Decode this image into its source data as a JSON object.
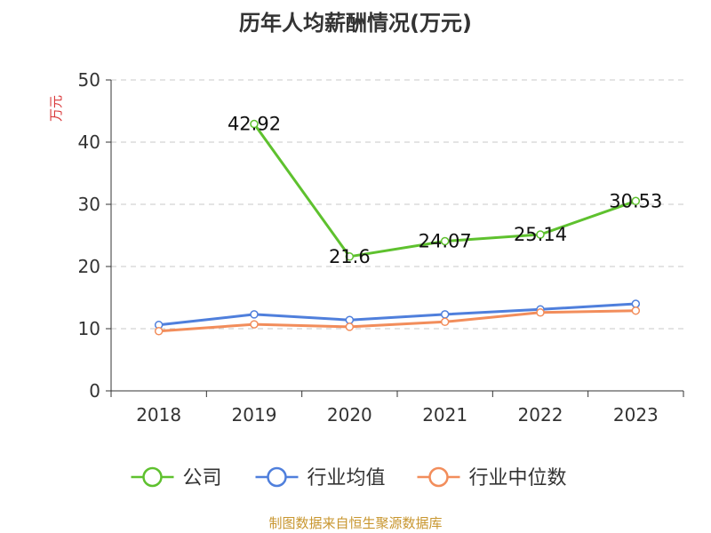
{
  "chart_data": {
    "type": "line",
    "title": "历年人均薪酬情况(万元)",
    "ylabel": "万元",
    "xlabel": "",
    "categories": [
      "2018",
      "2019",
      "2020",
      "2021",
      "2022",
      "2023"
    ],
    "ylim": [
      0,
      50
    ],
    "yticks": [
      0,
      10,
      20,
      30,
      40,
      50
    ],
    "grid": true,
    "legend_position": "bottom",
    "series": [
      {
        "name": "公司",
        "color": "#5ec12e",
        "values": [
          null,
          42.92,
          21.6,
          24.07,
          25.14,
          30.53
        ],
        "labels": [
          "",
          "42.92",
          "21.6",
          "24.07",
          "25.14",
          "30.53"
        ]
      },
      {
        "name": "行业均值",
        "color": "#4f7fdc",
        "values": [
          10.6,
          12.3,
          11.4,
          12.3,
          13.1,
          14.0
        ]
      },
      {
        "name": "行业中位数",
        "color": "#f28d5b",
        "values": [
          9.6,
          10.7,
          10.3,
          11.1,
          12.6,
          12.9
        ]
      }
    ]
  },
  "footer": {
    "source": "制图数据来自恒生聚源数据库"
  }
}
